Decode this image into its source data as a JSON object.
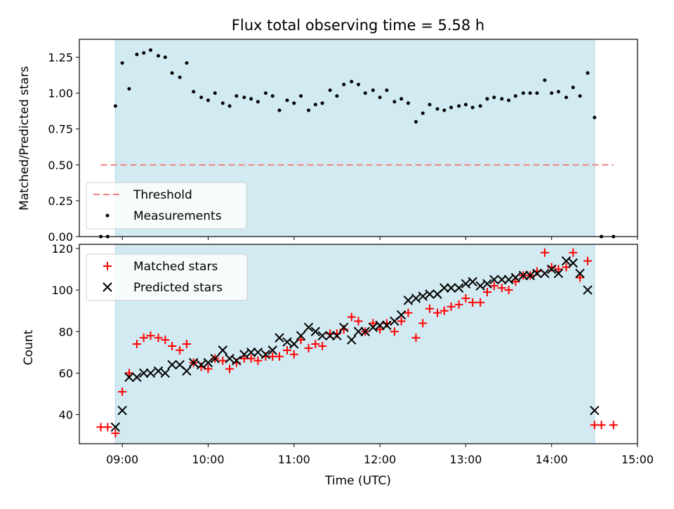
{
  "chart_data": [
    {
      "type": "scatter",
      "title": "Flux total observing time = 5.58 h",
      "xlabel": "",
      "ylabel": "Matched/Predicted stars",
      "ylim": [
        0,
        1.375
      ],
      "yticks": [
        "0.00",
        "0.25",
        "0.50",
        "0.75",
        "1.00",
        "1.25"
      ],
      "yticks_values": [
        0,
        0.25,
        0.5,
        0.75,
        1.0,
        1.25
      ],
      "shaded_span": {
        "start": 8.92,
        "end": 14.5,
        "color": "#add8e6"
      },
      "threshold": {
        "name": "Threshold",
        "value": 0.5,
        "x_start": 8.75,
        "x_end": 14.72,
        "color": "#f08080"
      },
      "legend": {
        "placement": "lower-left",
        "entries": [
          "Threshold",
          "Measurements"
        ]
      },
      "series": [
        {
          "name": "Measurements",
          "marker": "dot",
          "color": "#000000",
          "points": [
            [
              8.75,
              0.0
            ],
            [
              8.83,
              0.0
            ],
            [
              8.92,
              0.91
            ],
            [
              9.0,
              1.21
            ],
            [
              9.08,
              1.03
            ],
            [
              9.17,
              1.27
            ],
            [
              9.25,
              1.28
            ],
            [
              9.33,
              1.3
            ],
            [
              9.42,
              1.26
            ],
            [
              9.5,
              1.25
            ],
            [
              9.58,
              1.14
            ],
            [
              9.67,
              1.11
            ],
            [
              9.75,
              1.21
            ],
            [
              9.83,
              1.01
            ],
            [
              9.92,
              0.97
            ],
            [
              10.0,
              0.95
            ],
            [
              10.08,
              1.0
            ],
            [
              10.17,
              0.93
            ],
            [
              10.25,
              0.91
            ],
            [
              10.33,
              0.98
            ],
            [
              10.42,
              0.97
            ],
            [
              10.5,
              0.96
            ],
            [
              10.58,
              0.94
            ],
            [
              10.67,
              1.0
            ],
            [
              10.75,
              0.98
            ],
            [
              10.83,
              0.88
            ],
            [
              10.92,
              0.95
            ],
            [
              11.0,
              0.93
            ],
            [
              11.08,
              0.98
            ],
            [
              11.17,
              0.88
            ],
            [
              11.25,
              0.92
            ],
            [
              11.33,
              0.93
            ],
            [
              11.42,
              1.02
            ],
            [
              11.5,
              0.98
            ],
            [
              11.58,
              1.06
            ],
            [
              11.67,
              1.08
            ],
            [
              11.75,
              1.06
            ],
            [
              11.83,
              1.0
            ],
            [
              11.92,
              1.02
            ],
            [
              12.0,
              0.97
            ],
            [
              12.08,
              1.02
            ],
            [
              12.17,
              0.94
            ],
            [
              12.25,
              0.96
            ],
            [
              12.33,
              0.93
            ],
            [
              12.42,
              0.8
            ],
            [
              12.5,
              0.86
            ],
            [
              12.58,
              0.92
            ],
            [
              12.67,
              0.89
            ],
            [
              12.75,
              0.88
            ],
            [
              12.83,
              0.9
            ],
            [
              12.92,
              0.91
            ],
            [
              13.0,
              0.92
            ],
            [
              13.08,
              0.9
            ],
            [
              13.17,
              0.91
            ],
            [
              13.25,
              0.96
            ],
            [
              13.33,
              0.97
            ],
            [
              13.42,
              0.96
            ],
            [
              13.5,
              0.95
            ],
            [
              13.58,
              0.98
            ],
            [
              13.67,
              1.0
            ],
            [
              13.75,
              1.0
            ],
            [
              13.83,
              1.0
            ],
            [
              13.92,
              1.09
            ],
            [
              14.0,
              1.0
            ],
            [
              14.08,
              1.01
            ],
            [
              14.17,
              0.97
            ],
            [
              14.25,
              1.04
            ],
            [
              14.33,
              0.98
            ],
            [
              14.42,
              1.14
            ],
            [
              14.5,
              0.83
            ],
            [
              14.58,
              0.0
            ],
            [
              14.72,
              0.0
            ]
          ]
        }
      ]
    },
    {
      "type": "scatter",
      "title": "",
      "xlabel": "Time (UTC)",
      "ylabel": "Count",
      "ylim": [
        26,
        122
      ],
      "yticks": [
        "40",
        "60",
        "80",
        "100",
        "120"
      ],
      "yticks_values": [
        40,
        60,
        80,
        100,
        120
      ],
      "xlim": [
        8.5,
        15.0
      ],
      "xticks": [
        "09:00",
        "10:00",
        "11:00",
        "12:00",
        "13:00",
        "14:00",
        "15:00"
      ],
      "xticks_values": [
        9,
        10,
        11,
        12,
        13,
        14,
        15
      ],
      "shaded_span": {
        "start": 8.92,
        "end": 14.5,
        "color": "#add8e6"
      },
      "legend": {
        "placement": "upper-left",
        "entries": [
          "Matched stars",
          "Predicted stars"
        ]
      },
      "series": [
        {
          "name": "Matched stars",
          "marker": "plus",
          "color": "#ff0000",
          "points": [
            [
              8.75,
              34
            ],
            [
              8.83,
              34
            ],
            [
              8.92,
              31
            ],
            [
              9.0,
              51
            ],
            [
              9.08,
              60
            ],
            [
              9.17,
              74
            ],
            [
              9.25,
              77
            ],
            [
              9.33,
              78
            ],
            [
              9.42,
              77
            ],
            [
              9.5,
              76
            ],
            [
              9.58,
              73
            ],
            [
              9.67,
              71
            ],
            [
              9.75,
              74
            ],
            [
              9.83,
              65
            ],
            [
              9.92,
              63
            ],
            [
              10.0,
              62
            ],
            [
              10.08,
              67
            ],
            [
              10.17,
              66
            ],
            [
              10.25,
              62
            ],
            [
              10.33,
              65
            ],
            [
              10.42,
              67
            ],
            [
              10.5,
              67
            ],
            [
              10.58,
              66
            ],
            [
              10.67,
              68
            ],
            [
              10.75,
              68
            ],
            [
              10.83,
              68
            ],
            [
              10.92,
              71
            ],
            [
              11.0,
              69
            ],
            [
              11.08,
              76
            ],
            [
              11.17,
              72
            ],
            [
              11.25,
              74
            ],
            [
              11.33,
              73
            ],
            [
              11.42,
              79
            ],
            [
              11.5,
              79
            ],
            [
              11.58,
              81
            ],
            [
              11.67,
              87
            ],
            [
              11.75,
              85
            ],
            [
              11.83,
              80
            ],
            [
              11.92,
              84
            ],
            [
              12.0,
              81
            ],
            [
              12.08,
              84
            ],
            [
              12.17,
              80
            ],
            [
              12.25,
              85
            ],
            [
              12.33,
              89
            ],
            [
              12.42,
              77
            ],
            [
              12.5,
              84
            ],
            [
              12.58,
              91
            ],
            [
              12.67,
              89
            ],
            [
              12.75,
              90
            ],
            [
              12.83,
              92
            ],
            [
              12.92,
              93
            ],
            [
              13.0,
              96
            ],
            [
              13.08,
              94
            ],
            [
              13.17,
              94
            ],
            [
              13.25,
              99
            ],
            [
              13.33,
              102
            ],
            [
              13.42,
              101
            ],
            [
              13.5,
              100
            ],
            [
              13.58,
              104
            ],
            [
              13.67,
              107
            ],
            [
              13.75,
              107
            ],
            [
              13.83,
              109
            ],
            [
              13.92,
              118
            ],
            [
              14.0,
              111
            ],
            [
              14.08,
              110
            ],
            [
              14.17,
              111
            ],
            [
              14.25,
              118
            ],
            [
              14.33,
              106
            ],
            [
              14.42,
              114
            ],
            [
              14.5,
              35
            ],
            [
              14.58,
              35
            ],
            [
              14.72,
              35
            ]
          ]
        },
        {
          "name": "Predicted stars",
          "marker": "x",
          "color": "#000000",
          "points": [
            [
              8.92,
              34
            ],
            [
              9.0,
              42
            ],
            [
              9.08,
              58
            ],
            [
              9.17,
              58
            ],
            [
              9.25,
              60
            ],
            [
              9.33,
              60
            ],
            [
              9.42,
              61
            ],
            [
              9.5,
              60
            ],
            [
              9.58,
              64
            ],
            [
              9.67,
              64
            ],
            [
              9.75,
              61
            ],
            [
              9.83,
              65
            ],
            [
              9.92,
              64
            ],
            [
              10.0,
              65
            ],
            [
              10.08,
              67
            ],
            [
              10.17,
              71
            ],
            [
              10.25,
              67
            ],
            [
              10.33,
              66
            ],
            [
              10.42,
              69
            ],
            [
              10.5,
              70
            ],
            [
              10.58,
              70
            ],
            [
              10.67,
              69
            ],
            [
              10.75,
              71
            ],
            [
              10.83,
              77
            ],
            [
              10.92,
              75
            ],
            [
              11.0,
              74
            ],
            [
              11.08,
              78
            ],
            [
              11.17,
              82
            ],
            [
              11.25,
              80
            ],
            [
              11.33,
              78
            ],
            [
              11.42,
              78
            ],
            [
              11.5,
              78
            ],
            [
              11.58,
              82
            ],
            [
              11.67,
              76
            ],
            [
              11.75,
              80
            ],
            [
              11.83,
              80
            ],
            [
              11.92,
              82
            ],
            [
              12.0,
              83
            ],
            [
              12.08,
              83
            ],
            [
              12.17,
              85
            ],
            [
              12.25,
              88
            ],
            [
              12.33,
              95
            ],
            [
              12.42,
              96
            ],
            [
              12.5,
              97
            ],
            [
              12.58,
              98
            ],
            [
              12.67,
              98
            ],
            [
              12.75,
              101
            ],
            [
              12.83,
              101
            ],
            [
              12.92,
              101
            ],
            [
              13.0,
              103
            ],
            [
              13.08,
              104
            ],
            [
              13.17,
              102
            ],
            [
              13.25,
              103
            ],
            [
              13.33,
              105
            ],
            [
              13.42,
              105
            ],
            [
              13.5,
              105
            ],
            [
              13.58,
              106
            ],
            [
              13.67,
              107
            ],
            [
              13.75,
              107
            ],
            [
              13.83,
              108
            ],
            [
              13.92,
              108
            ],
            [
              14.0,
              110
            ],
            [
              14.08,
              108
            ],
            [
              14.17,
              114
            ],
            [
              14.25,
              113
            ],
            [
              14.33,
              108
            ],
            [
              14.42,
              100
            ],
            [
              14.5,
              42
            ]
          ]
        }
      ]
    }
  ]
}
